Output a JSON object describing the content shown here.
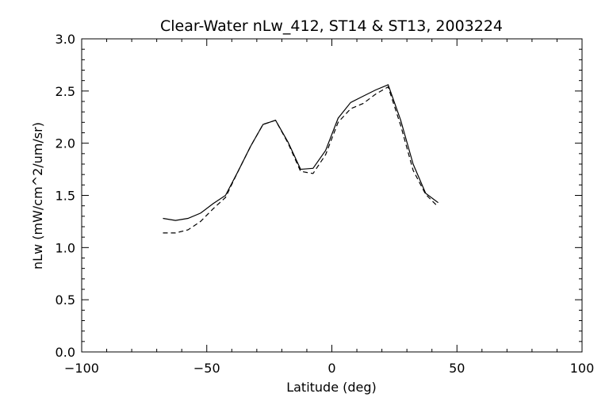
{
  "chart_data": {
    "type": "line",
    "title": "Clear-Water nLw_412, ST14 & ST13, 2003224",
    "xlabel": "Latitude (deg)",
    "ylabel": "nLw (mW/cm^2/um/sr)",
    "xlim": [
      -100,
      100
    ],
    "ylim": [
      0.0,
      3.0
    ],
    "x_ticks": [
      "−100",
      "−50",
      "0",
      "50",
      "100"
    ],
    "x_tick_values": [
      -100,
      -50,
      0,
      50,
      100
    ],
    "y_ticks": [
      "0.0",
      "0.5",
      "1.0",
      "1.5",
      "2.0",
      "2.5",
      "3.0"
    ],
    "y_tick_values": [
      0.0,
      0.5,
      1.0,
      1.5,
      2.0,
      2.5,
      3.0
    ],
    "grid": false,
    "series": [
      {
        "style": "solid",
        "x": [
          -67.5,
          -62.5,
          -57.5,
          -52.5,
          -47.5,
          -42.5,
          -37.5,
          -32.5,
          -27.5,
          -22.5,
          -17.5,
          -12.5,
          -7.5,
          -2.5,
          2.5,
          7.5,
          12.5,
          17.5,
          22.5,
          27.5,
          32.5,
          37.5,
          42.5
        ],
        "y": [
          1.28,
          1.26,
          1.28,
          1.33,
          1.42,
          1.5,
          1.73,
          1.97,
          2.18,
          2.22,
          2.01,
          1.75,
          1.76,
          1.93,
          2.24,
          2.39,
          2.45,
          2.51,
          2.56,
          2.22,
          1.8,
          1.52,
          1.43
        ]
      },
      {
        "style": "dashed",
        "x": [
          -67.5,
          -62.5,
          -57.5,
          -52.5,
          -47.5,
          -42.5,
          -37.5,
          -32.5,
          -27.5,
          -22.5,
          -17.5,
          -12.5,
          -7.5,
          -2.5,
          2.5,
          7.5,
          12.5,
          17.5,
          22.5,
          27.5,
          32.5,
          37.5,
          42.5
        ],
        "y": [
          1.14,
          1.14,
          1.17,
          1.25,
          1.37,
          1.48,
          1.73,
          1.97,
          2.18,
          2.22,
          2.0,
          1.73,
          1.71,
          1.89,
          2.2,
          2.33,
          2.38,
          2.47,
          2.54,
          2.17,
          1.74,
          1.51,
          1.39
        ]
      }
    ]
  }
}
